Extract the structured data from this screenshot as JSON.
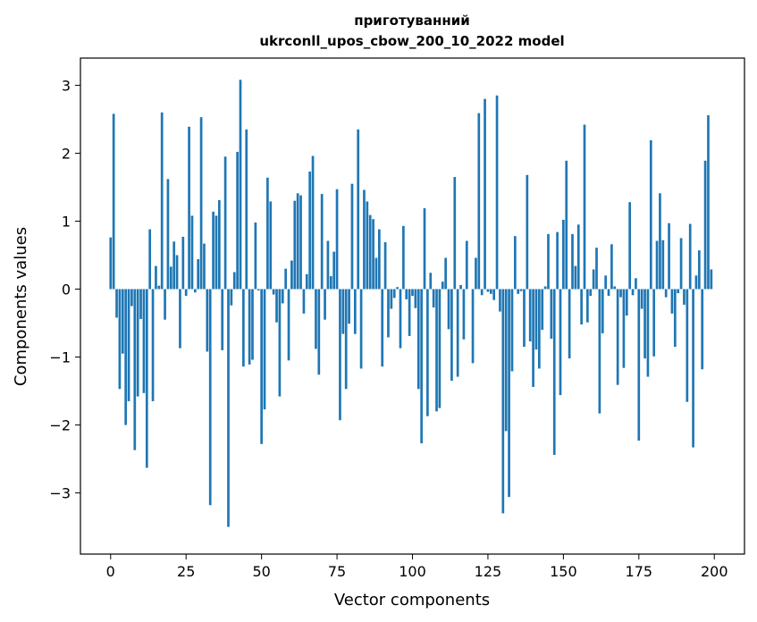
{
  "chart_data": {
    "type": "bar",
    "title": [
      "приготуванний",
      "ukrconll_upos_cbow_200_10_2022 model"
    ],
    "xlabel": "Vector components",
    "ylabel": "Components values",
    "xlim": [
      -10,
      210
    ],
    "ylim": [
      -3.9,
      3.4
    ],
    "xticks": [
      0,
      25,
      50,
      75,
      100,
      125,
      150,
      175,
      200
    ],
    "xtick_labels": [
      "0",
      "25",
      "50",
      "75",
      "100",
      "125",
      "150",
      "175",
      "200"
    ],
    "yticks": [
      -3,
      -2,
      -1,
      0,
      1,
      2,
      3
    ],
    "ytick_labels": [
      "−3",
      "−2",
      "−1",
      "0",
      "1",
      "2",
      "3"
    ],
    "grid": false,
    "bar_color": "#1f77b4",
    "values": [
      0.76,
      2.58,
      -0.42,
      -1.47,
      -0.95,
      -2.0,
      -1.65,
      -0.25,
      -2.37,
      -1.58,
      -0.44,
      -1.53,
      -2.63,
      0.88,
      -1.65,
      0.34,
      0.05,
      2.6,
      -0.45,
      1.62,
      0.33,
      0.7,
      0.5,
      -0.87,
      0.77,
      -0.1,
      2.39,
      1.08,
      -0.05,
      0.44,
      2.53,
      0.67,
      -0.92,
      -3.18,
      1.14,
      1.08,
      1.31,
      -0.9,
      1.95,
      -3.5,
      -0.24,
      0.25,
      2.02,
      3.08,
      -1.14,
      2.35,
      -1.11,
      -1.04,
      0.98,
      -0.02,
      -2.28,
      -1.77,
      1.64,
      1.29,
      -0.08,
      -0.49,
      -1.58,
      -0.21,
      0.3,
      -1.05,
      0.42,
      1.3,
      1.41,
      1.38,
      -0.36,
      0.22,
      1.73,
      1.96,
      -0.88,
      -1.26,
      1.4,
      -0.45,
      0.71,
      0.19,
      0.55,
      1.47,
      -1.93,
      -0.66,
      -1.47,
      -0.51,
      1.55,
      -0.66,
      2.35,
      -1.17,
      1.46,
      1.29,
      1.09,
      1.03,
      0.46,
      0.88,
      -1.14,
      0.69,
      -0.71,
      -0.29,
      -0.13,
      0.03,
      -0.87,
      0.93,
      -0.15,
      -0.69,
      -0.1,
      -0.28,
      -1.47,
      -2.27,
      1.19,
      -1.87,
      0.24,
      -0.27,
      -1.8,
      -1.75,
      0.11,
      0.46,
      -0.59,
      -1.35,
      1.65,
      -1.29,
      0.06,
      -0.74,
      0.71,
      0.0,
      -1.09,
      0.46,
      2.59,
      -0.09,
      2.8,
      -0.04,
      -0.07,
      -0.16,
      2.85,
      -0.33,
      -3.3,
      -2.09,
      -3.06,
      -1.21,
      0.78,
      -0.07,
      -0.03,
      -0.85,
      1.68,
      -0.77,
      -1.44,
      -0.89,
      -1.17,
      -0.6,
      0.04,
      0.81,
      -0.73,
      -2.44,
      0.84,
      -1.56,
      1.02,
      1.89,
      -1.02,
      0.81,
      0.34,
      0.95,
      -0.52,
      2.42,
      -0.49,
      -0.1,
      0.29,
      0.61,
      -1.83,
      -0.65,
      0.2,
      -0.1,
      0.66,
      0.04,
      -1.41,
      -0.12,
      -1.16,
      -0.39,
      1.28,
      -0.09,
      0.16,
      -2.23,
      -0.29,
      -1.02,
      -1.29,
      2.19,
      -0.99,
      0.71,
      1.41,
      0.72,
      -0.12,
      0.97,
      -0.36,
      -0.85,
      -0.06,
      0.75,
      -0.23,
      -1.66,
      0.96,
      -2.33,
      0.2,
      0.57,
      -1.18,
      1.89,
      2.56,
      0.29
    ]
  }
}
